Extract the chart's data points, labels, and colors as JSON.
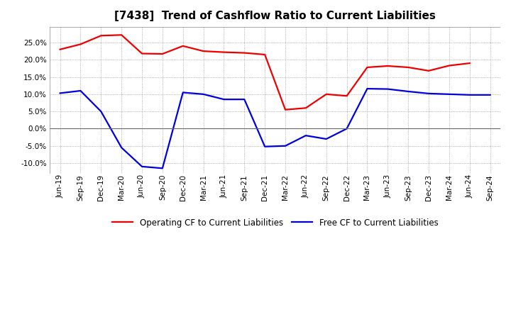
{
  "title": "[7438]  Trend of Cashflow Ratio to Current Liabilities",
  "x_labels": [
    "Jun-19",
    "Sep-19",
    "Dec-19",
    "Mar-20",
    "Jun-20",
    "Sep-20",
    "Dec-20",
    "Mar-21",
    "Jun-21",
    "Sep-21",
    "Dec-21",
    "Mar-22",
    "Jun-22",
    "Sep-22",
    "Dec-22",
    "Mar-23",
    "Jun-23",
    "Sep-23",
    "Dec-23",
    "Mar-24",
    "Jun-24",
    "Sep-24"
  ],
  "operating_cf": [
    0.23,
    0.245,
    0.27,
    0.272,
    0.218,
    0.217,
    0.24,
    0.225,
    0.222,
    0.22,
    0.215,
    0.055,
    0.06,
    0.1,
    0.095,
    0.178,
    0.182,
    0.178,
    0.168,
    0.183,
    0.19,
    null
  ],
  "free_cf": [
    0.103,
    0.11,
    0.05,
    -0.055,
    -0.11,
    -0.115,
    0.105,
    0.1,
    0.085,
    0.085,
    -0.052,
    -0.05,
    -0.02,
    -0.03,
    0.0,
    0.116,
    0.115,
    0.108,
    0.102,
    0.1,
    0.098,
    0.098
  ],
  "ylim": [
    -0.13,
    0.295
  ],
  "yticks": [
    -0.1,
    -0.05,
    0.0,
    0.05,
    0.1,
    0.15,
    0.2,
    0.25
  ],
  "operating_color": "#EE0000",
  "free_color": "#0000DD",
  "background_color": "#FFFFFF",
  "grid_color": "#999999",
  "legend_operating": "Operating CF to Current Liabilities",
  "legend_free": "Free CF to Current Liabilities",
  "title_fontsize": 11,
  "tick_fontsize": 7.5,
  "legend_fontsize": 8.5
}
